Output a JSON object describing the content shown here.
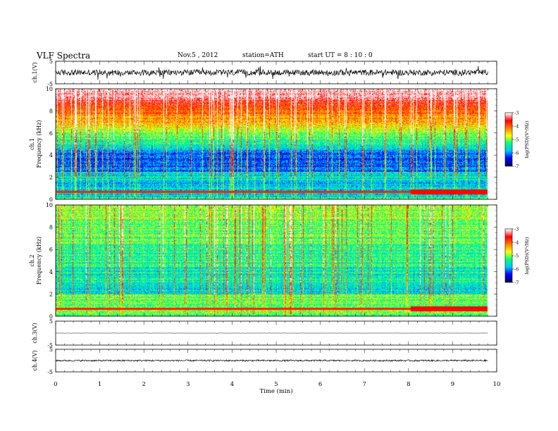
{
  "header": {
    "title": "VLF  Spectra",
    "date": "Nov.5  , 2012",
    "station": "station=ATH",
    "start": "start  UT  =   8 : 10 : 0"
  },
  "chart_data": {
    "type": "heatmap",
    "x": {
      "label": "Time  (min)",
      "range": [
        0,
        10
      ],
      "ticks": [
        0,
        1,
        2,
        3,
        4,
        5,
        6,
        7,
        8,
        9,
        10
      ],
      "data_end": 9.8
    },
    "panels": [
      {
        "id": "ch1-waveform",
        "kind": "waveform",
        "ylabel": "ch.1(V)",
        "ylim": [
          -5,
          5
        ],
        "yticks": [
          "5",
          "-5"
        ],
        "level": 0,
        "noise_amplitude": 1.3,
        "spike_amplitude": 2.4
      },
      {
        "id": "ch1-spectrogram",
        "kind": "spectrogram",
        "ylabel": "ch.1\nFrequency  (kHz)",
        "ylim": [
          0,
          10
        ],
        "yticks": [
          "0",
          "2",
          "4",
          "6",
          "8",
          "10"
        ],
        "zlim": [
          -7,
          -3
        ],
        "zticks": [
          "-3",
          "-4",
          "-5",
          "-6",
          "-7"
        ],
        "zlabel": "log(PSD)(V²/Hz)"
      },
      {
        "id": "ch2-spectrogram",
        "kind": "spectrogram",
        "ylabel": "ch.2\nFrequency  (kHz)",
        "ylim": [
          0,
          10
        ],
        "yticks": [
          "0",
          "2",
          "4",
          "6",
          "8",
          "10"
        ],
        "zlim": [
          -7,
          -3
        ],
        "zticks": [
          "-3",
          "-4",
          "-5",
          "-6",
          "-7"
        ],
        "zlabel": "log(PSD)(V²/Hz)"
      },
      {
        "id": "ch3-waveform",
        "kind": "waveform",
        "ylabel": "ch.3(V)",
        "ylim": [
          -5,
          5
        ],
        "yticks": [
          "5",
          "-5"
        ],
        "level": 0,
        "noise_amplitude": 0.05,
        "spike_amplitude": 0
      },
      {
        "id": "ch4-waveform",
        "kind": "waveform",
        "ylabel": "ch.4(V)",
        "ylim": [
          -5,
          5
        ],
        "yticks": [
          "5",
          "-5"
        ],
        "level": 0,
        "noise_amplitude": 0.35,
        "spike_amplitude": 0
      }
    ],
    "colormap": {
      "name": "rainbow",
      "stops": [
        "#000060",
        "#0000ff",
        "#00c8ff",
        "#00ff80",
        "#ffff00",
        "#ff8000",
        "#ff0000",
        "#ffffff"
      ]
    }
  }
}
